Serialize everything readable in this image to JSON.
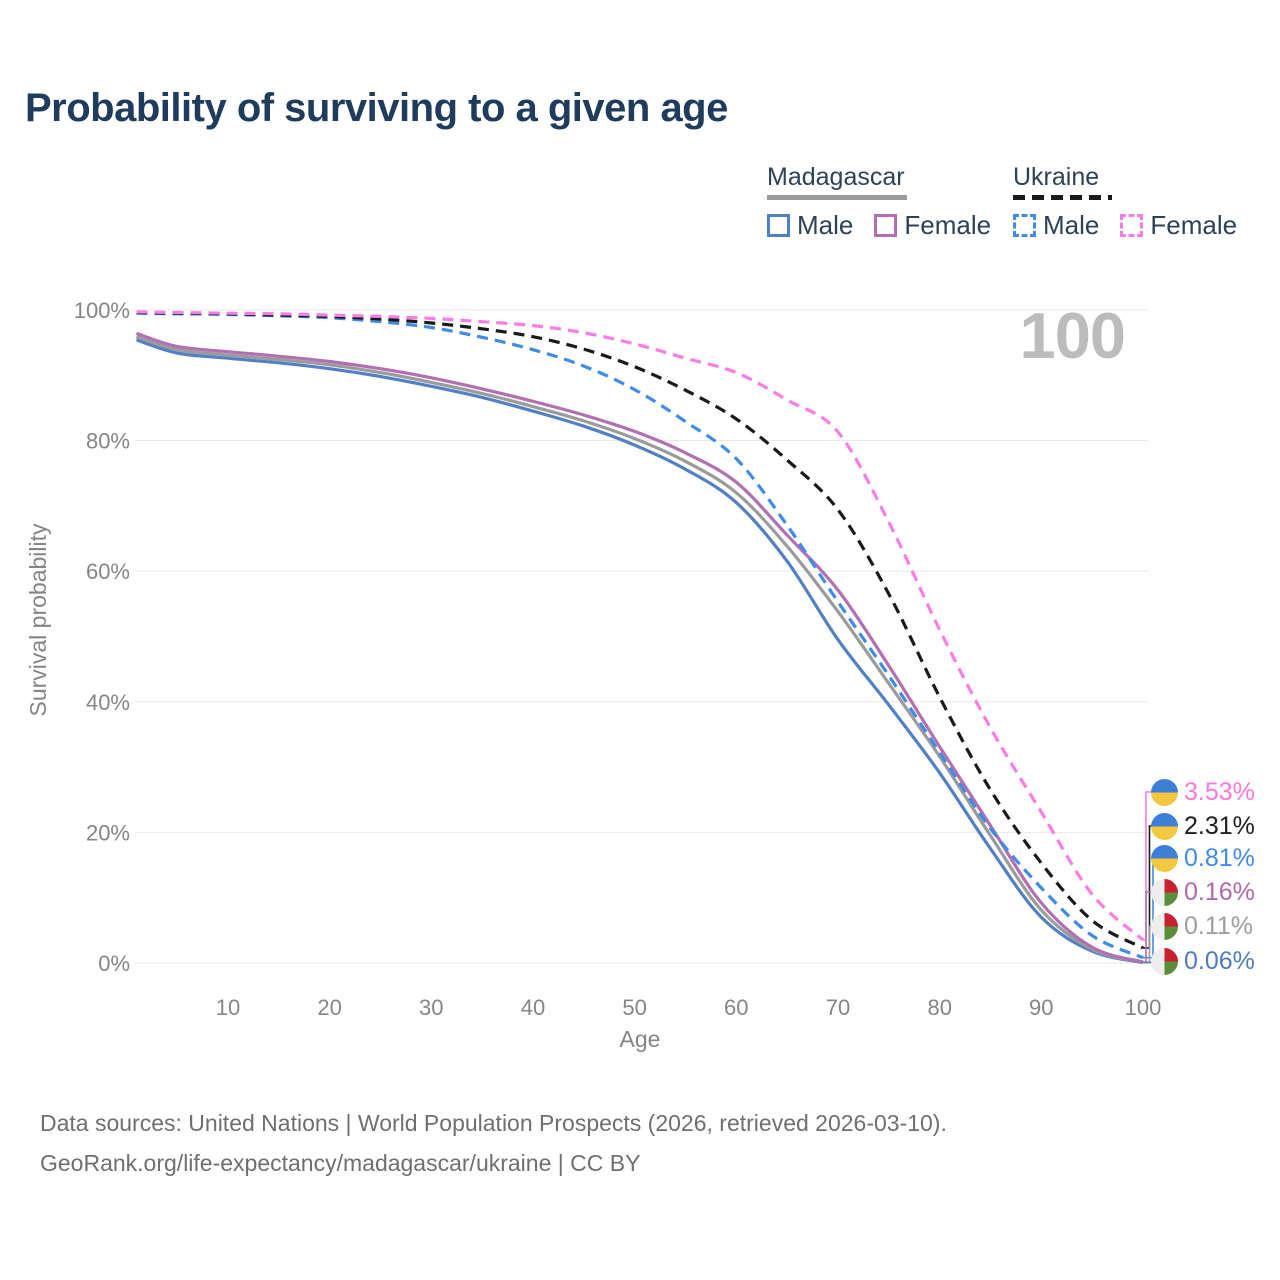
{
  "title": "Probability of surviving to a given age",
  "watermark": "100",
  "legend": {
    "groups": [
      {
        "name": "Madagascar",
        "line_style": "solid",
        "underline_color": "#9b9b9b",
        "items": [
          {
            "label": "Male",
            "color": "#5180c6"
          },
          {
            "label": "Female",
            "color": "#b26fb2"
          }
        ]
      },
      {
        "name": "Ukraine",
        "line_style": "dashed",
        "underline_color": "#1a1a1a",
        "items": [
          {
            "label": "Male",
            "color": "#3f8ce8"
          },
          {
            "label": "Female",
            "color": "#fb7ce6"
          }
        ]
      }
    ]
  },
  "axes": {
    "x_title": "Age",
    "y_title": "Survival probability",
    "x_ticks": [
      10,
      20,
      30,
      40,
      50,
      60,
      70,
      80,
      90,
      100
    ],
    "y_ticks": [
      0,
      20,
      40,
      60,
      80,
      100
    ],
    "y_tick_suffix": "%"
  },
  "chart_data": {
    "type": "line",
    "title": "Probability of surviving to a given age",
    "xlabel": "Age",
    "ylabel": "Survival probability",
    "xlim": [
      1,
      100
    ],
    "ylim": [
      0,
      100
    ],
    "grid": "horizontal",
    "legend_position": "top-right",
    "ages": [
      1,
      5,
      10,
      15,
      20,
      25,
      30,
      35,
      40,
      45,
      50,
      55,
      60,
      65,
      70,
      75,
      80,
      85,
      90,
      95,
      100
    ],
    "series": [
      {
        "name": "Madagascar Male",
        "country": "Madagascar",
        "sex": "Male",
        "color": "#5180c6",
        "dash": "solid",
        "flag": "mg",
        "end_label": "0.06%",
        "end_label_color": "#4d7cc1",
        "values": [
          95.4,
          93.4,
          92.6,
          91.9,
          91.0,
          89.8,
          88.3,
          86.6,
          84.5,
          82.2,
          79.3,
          75.6,
          70.5,
          61.5,
          49.5,
          39.5,
          29.1,
          17.5,
          7.0,
          1.8,
          0.06
        ]
      },
      {
        "name": "Madagascar Total",
        "country": "Madagascar",
        "sex": "Total",
        "color": "#9b9b9b",
        "dash": "solid",
        "flag": "mg",
        "end_label": "0.11%",
        "end_label_color": "#9e9e9e",
        "values": [
          95.9,
          93.9,
          93.1,
          92.4,
          91.6,
          90.4,
          88.9,
          87.2,
          85.2,
          83.0,
          80.3,
          76.8,
          72.0,
          63.8,
          53.8,
          42.8,
          31.6,
          19.5,
          8.1,
          2.1,
          0.11
        ]
      },
      {
        "name": "Madagascar Female",
        "country": "Madagascar",
        "sex": "Female",
        "color": "#b26fb2",
        "dash": "solid",
        "flag": "mg",
        "end_label": "0.16%",
        "end_label_color": "#b069ac",
        "values": [
          96.4,
          94.4,
          93.6,
          92.9,
          92.1,
          91.0,
          89.6,
          87.9,
          86.0,
          83.9,
          81.4,
          78.1,
          73.6,
          65.5,
          57.1,
          45.5,
          33.1,
          21.0,
          9.2,
          2.4,
          0.16
        ]
      },
      {
        "name": "Ukraine Male",
        "country": "Ukraine",
        "sex": "Male",
        "color": "#3f8ce8",
        "dash": "dashed",
        "flag": "ua",
        "end_label": "0.81%",
        "end_label_color": "#3f8ce8",
        "values": [
          99.5,
          99.4,
          99.3,
          99.1,
          98.8,
          98.2,
          97.3,
          95.8,
          93.9,
          91.4,
          87.8,
          82.9,
          77.2,
          67.0,
          55.3,
          44.0,
          32.2,
          20.6,
          11.5,
          4.2,
          0.81
        ]
      },
      {
        "name": "Ukraine Total",
        "country": "Ukraine",
        "sex": "Total",
        "color": "#1a1a1a",
        "dash": "dashed",
        "flag": "ua",
        "end_label": "2.31%",
        "end_label_color": "#1e1e1e",
        "values": [
          99.6,
          99.5,
          99.4,
          99.2,
          99.0,
          98.6,
          98.0,
          97.1,
          95.9,
          94.0,
          91.3,
          87.7,
          83.3,
          77.0,
          69.4,
          56.5,
          40.7,
          26.5,
          15.3,
          6.5,
          2.31
        ]
      },
      {
        "name": "Ukraine Female",
        "country": "Ukraine",
        "sex": "Female",
        "color": "#fb7ce6",
        "dash": "dashed",
        "flag": "ua",
        "end_label": "3.53%",
        "end_label_color": "#fb78e0",
        "values": [
          99.7,
          99.6,
          99.5,
          99.4,
          99.2,
          99.0,
          98.7,
          98.2,
          97.6,
          96.5,
          94.8,
          92.6,
          90.4,
          86.2,
          81.3,
          67.5,
          51.0,
          36.0,
          23.1,
          10.5,
          3.53
        ]
      }
    ]
  },
  "footer": {
    "line1": "Data sources: United Nations | World Population Prospects (2026, retrieved 2026-03-10).",
    "line2": "GeoRank.org/life-expectancy/madagascar/ukraine | CC BY"
  }
}
